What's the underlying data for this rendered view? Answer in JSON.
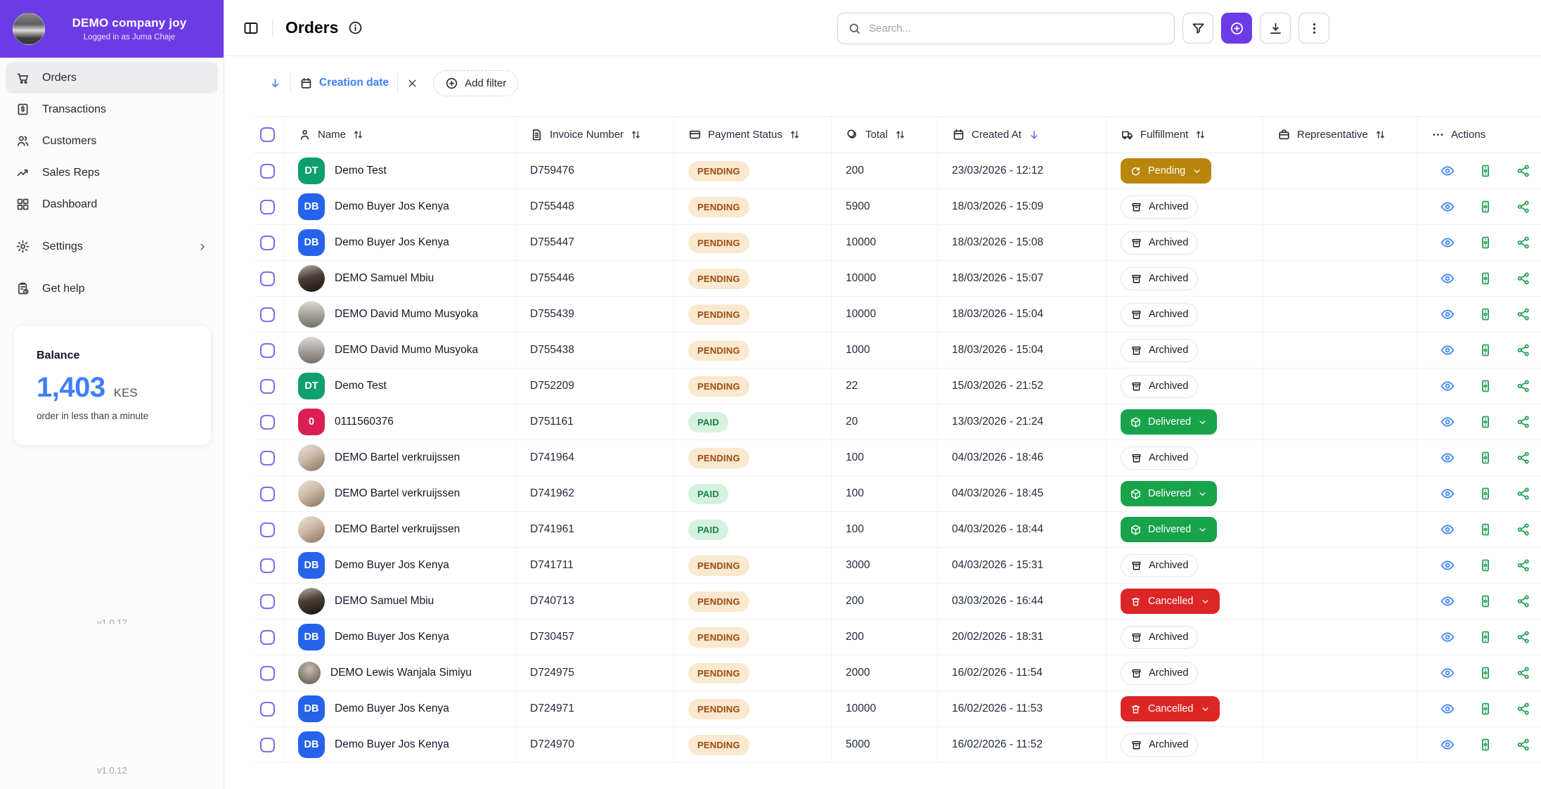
{
  "colors": {
    "brand": "#6d3be5",
    "accent_blue": "#3f7ef8",
    "status_gold": "#b8860b",
    "status_green": "#18a24a",
    "status_red": "#dc2626"
  },
  "brand": {
    "name": "DEMO company joy",
    "subtitle": "Logged in as Juma Chaje"
  },
  "sidebar": {
    "items": [
      {
        "label": "Orders",
        "icon": "cart",
        "active": true
      },
      {
        "label": "Transactions",
        "icon": "receipt",
        "active": false
      },
      {
        "label": "Customers",
        "icon": "users",
        "active": false
      },
      {
        "label": "Sales Reps",
        "icon": "trend",
        "active": false
      },
      {
        "label": "Dashboard",
        "icon": "grid",
        "active": false
      }
    ],
    "secondary": [
      {
        "label": "Settings",
        "icon": "gear",
        "chevron": true
      },
      {
        "label": "Get help",
        "icon": "help",
        "chevron": false
      }
    ],
    "balance": {
      "title": "Balance",
      "amount": "1,403",
      "currency": "KES",
      "caption": "order in less than a minute"
    },
    "version": "v1.0.12"
  },
  "header": {
    "title": "Orders",
    "search_placeholder": "Search..."
  },
  "filters": {
    "sort_field": "Creation date",
    "add_filter_label": "Add filter"
  },
  "table": {
    "columns": [
      {
        "label": "Name",
        "icon": "person",
        "sort": "both"
      },
      {
        "label": "Invoice Number",
        "icon": "file",
        "sort": "both"
      },
      {
        "label": "Payment Status",
        "icon": "card",
        "sort": "both"
      },
      {
        "label": "Total",
        "icon": "coins",
        "sort": "both"
      },
      {
        "label": "Created At",
        "icon": "calendar",
        "sort": "desc"
      },
      {
        "label": "Fulfillment",
        "icon": "truck",
        "sort": "both"
      },
      {
        "label": "Representative",
        "icon": "briefcase",
        "sort": "both"
      },
      {
        "label": "Actions",
        "icon": "ellipsis",
        "sort": "none"
      }
    ],
    "actions": [
      "view",
      "invoice",
      "share"
    ],
    "rows": [
      {
        "avatar": {
          "kind": "initials",
          "text": "DT",
          "color": "#0e9f6e"
        },
        "name": "Demo Test",
        "invoice": "D759476",
        "payment": "PENDING",
        "total": "200",
        "created": "23/03/2026 - 12:12",
        "fulfillment": {
          "label": "Pending",
          "variant": "pending",
          "dropdown": true
        },
        "representative": ""
      },
      {
        "avatar": {
          "kind": "initials",
          "text": "DB",
          "color": "#2563eb"
        },
        "name": "Demo Buyer Jos Kenya",
        "invoice": "D755448",
        "payment": "PENDING",
        "total": "5900",
        "created": "18/03/2026 - 15:09",
        "fulfillment": {
          "label": "Archived",
          "variant": "archived",
          "dropdown": false
        },
        "representative": ""
      },
      {
        "avatar": {
          "kind": "initials",
          "text": "DB",
          "color": "#2563eb"
        },
        "name": "Demo Buyer Jos Kenya",
        "invoice": "D755447",
        "payment": "PENDING",
        "total": "10000",
        "created": "18/03/2026 - 15:08",
        "fulfillment": {
          "label": "Archived",
          "variant": "archived",
          "dropdown": false
        },
        "representative": ""
      },
      {
        "avatar": {
          "kind": "photo",
          "tone": "samuel"
        },
        "name": "DEMO Samuel Mbiu",
        "invoice": "D755446",
        "payment": "PENDING",
        "total": "10000",
        "created": "18/03/2026 - 15:07",
        "fulfillment": {
          "label": "Archived",
          "variant": "archived",
          "dropdown": false
        },
        "representative": ""
      },
      {
        "avatar": {
          "kind": "photo",
          "tone": "david"
        },
        "name": "DEMO David Mumo Musyoka",
        "invoice": "D755439",
        "payment": "PENDING",
        "total": "10000",
        "created": "18/03/2026 - 15:04",
        "fulfillment": {
          "label": "Archived",
          "variant": "archived",
          "dropdown": false
        },
        "representative": ""
      },
      {
        "avatar": {
          "kind": "photo",
          "tone": "david"
        },
        "name": "DEMO David Mumo Musyoka",
        "invoice": "D755438",
        "payment": "PENDING",
        "total": "1000",
        "created": "18/03/2026 - 15:04",
        "fulfillment": {
          "label": "Archived",
          "variant": "archived",
          "dropdown": false
        },
        "representative": ""
      },
      {
        "avatar": {
          "kind": "initials",
          "text": "DT",
          "color": "#0e9f6e"
        },
        "name": "Demo Test",
        "invoice": "D752209",
        "payment": "PENDING",
        "total": "22",
        "created": "15/03/2026 - 21:52",
        "fulfillment": {
          "label": "Archived",
          "variant": "archived",
          "dropdown": false
        },
        "representative": ""
      },
      {
        "avatar": {
          "kind": "initials",
          "text": "0",
          "color": "#db1f54"
        },
        "name": "0111560376",
        "invoice": "D751161",
        "payment": "PAID",
        "total": "20",
        "created": "13/03/2026 - 21:24",
        "fulfillment": {
          "label": "Delivered",
          "variant": "delivered",
          "dropdown": true
        },
        "representative": ""
      },
      {
        "avatar": {
          "kind": "photo",
          "tone": "bartel"
        },
        "name": "DEMO Bartel verkruijssen",
        "invoice": "D741964",
        "payment": "PENDING",
        "total": "100",
        "created": "04/03/2026 - 18:46",
        "fulfillment": {
          "label": "Archived",
          "variant": "archived",
          "dropdown": false
        },
        "representative": ""
      },
      {
        "avatar": {
          "kind": "photo",
          "tone": "bartel"
        },
        "name": "DEMO Bartel verkruijssen",
        "invoice": "D741962",
        "payment": "PAID",
        "total": "100",
        "created": "04/03/2026 - 18:45",
        "fulfillment": {
          "label": "Delivered",
          "variant": "delivered",
          "dropdown": true
        },
        "representative": ""
      },
      {
        "avatar": {
          "kind": "photo",
          "tone": "bartel"
        },
        "name": "DEMO Bartel verkruijssen",
        "invoice": "D741961",
        "payment": "PAID",
        "total": "100",
        "created": "04/03/2026 - 18:44",
        "fulfillment": {
          "label": "Delivered",
          "variant": "delivered",
          "dropdown": true
        },
        "representative": ""
      },
      {
        "avatar": {
          "kind": "initials",
          "text": "DB",
          "color": "#2563eb"
        },
        "name": "Demo Buyer Jos Kenya",
        "invoice": "D741711",
        "payment": "PENDING",
        "total": "3000",
        "created": "04/03/2026 - 15:31",
        "fulfillment": {
          "label": "Archived",
          "variant": "archived",
          "dropdown": false
        },
        "representative": ""
      },
      {
        "avatar": {
          "kind": "photo",
          "tone": "samuel"
        },
        "name": "DEMO Samuel Mbiu",
        "invoice": "D740713",
        "payment": "PENDING",
        "total": "200",
        "created": "03/03/2026 - 16:44",
        "fulfillment": {
          "label": "Cancelled",
          "variant": "cancelled",
          "dropdown": true
        },
        "representative": ""
      },
      {
        "avatar": {
          "kind": "initials",
          "text": "DB",
          "color": "#2563eb"
        },
        "name": "Demo Buyer Jos Kenya",
        "invoice": "D730457",
        "payment": "PENDING",
        "total": "200",
        "created": "20/02/2026 - 18:31",
        "fulfillment": {
          "label": "Archived",
          "variant": "archived",
          "dropdown": false
        },
        "representative": ""
      },
      {
        "avatar": {
          "kind": "photo",
          "tone": "lewis"
        },
        "name": "DEMO Lewis Wanjala Simiyu",
        "invoice": "D724975",
        "payment": "PENDING",
        "total": "2000",
        "created": "16/02/2026 - 11:54",
        "fulfillment": {
          "label": "Archived",
          "variant": "archived",
          "dropdown": false
        },
        "representative": ""
      },
      {
        "avatar": {
          "kind": "initials",
          "text": "DB",
          "color": "#2563eb"
        },
        "name": "Demo Buyer Jos Kenya",
        "invoice": "D724971",
        "payment": "PENDING",
        "total": "10000",
        "created": "16/02/2026 - 11:53",
        "fulfillment": {
          "label": "Cancelled",
          "variant": "cancelled",
          "dropdown": true
        },
        "representative": ""
      },
      {
        "avatar": {
          "kind": "initials",
          "text": "DB",
          "color": "#2563eb"
        },
        "name": "Demo Buyer Jos Kenya",
        "invoice": "D724970",
        "payment": "PENDING",
        "total": "5000",
        "created": "16/02/2026 - 11:52",
        "fulfillment": {
          "label": "Archived",
          "variant": "archived",
          "dropdown": false
        },
        "representative": ""
      }
    ]
  }
}
